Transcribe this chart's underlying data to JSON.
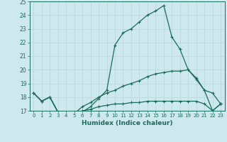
{
  "xlabel": "Humidex (Indice chaleur)",
  "background_color": "#cde8ee",
  "grid_color": "#b8d8d8",
  "line_color": "#1a6b5a",
  "xlim_min": -0.5,
  "xlim_max": 23.5,
  "ylim_min": 17,
  "ylim_max": 25,
  "x": [
    0,
    1,
    2,
    3,
    4,
    5,
    6,
    7,
    8,
    9,
    10,
    11,
    12,
    13,
    14,
    15,
    16,
    17,
    18,
    19,
    20,
    21,
    22,
    23
  ],
  "line1": [
    18.3,
    17.7,
    18.0,
    16.9,
    16.8,
    16.8,
    16.9,
    17.3,
    17.9,
    18.5,
    21.8,
    22.7,
    23.0,
    23.5,
    24.0,
    24.3,
    24.7,
    22.4,
    21.5,
    20.0,
    19.3,
    18.5,
    17.0,
    17.5
  ],
  "line2": [
    18.3,
    17.7,
    18.0,
    16.9,
    16.8,
    16.8,
    17.3,
    17.6,
    18.0,
    18.3,
    18.5,
    18.8,
    19.0,
    19.2,
    19.5,
    19.7,
    19.8,
    19.9,
    19.9,
    20.0,
    19.4,
    18.5,
    18.3,
    17.5
  ],
  "line3": [
    18.3,
    17.7,
    18.0,
    16.9,
    16.8,
    16.8,
    17.0,
    17.1,
    17.3,
    17.4,
    17.5,
    17.5,
    17.6,
    17.6,
    17.7,
    17.7,
    17.7,
    17.7,
    17.7,
    17.7,
    17.7,
    17.5,
    17.0,
    17.5
  ]
}
